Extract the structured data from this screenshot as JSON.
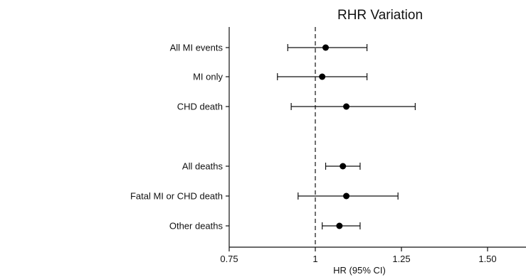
{
  "chart_data": {
    "type": "scatter",
    "subtype": "forest-plot",
    "title": "RHR Variation",
    "xlabel": "HR (95% CI)",
    "ylabel": "",
    "xlim": [
      0.75,
      1.6
    ],
    "reference_line": 1,
    "x_ticks": [
      {
        "value": 0.75,
        "label": "0.75"
      },
      {
        "value": 1.0,
        "label": "1"
      },
      {
        "value": 1.25,
        "label": "1.25"
      },
      {
        "value": 1.5,
        "label": "1.50"
      }
    ],
    "rows": [
      {
        "label": "All MI events",
        "hr": 1.03,
        "lower": 0.92,
        "upper": 1.15
      },
      {
        "label": "MI only",
        "hr": 1.02,
        "lower": 0.89,
        "upper": 1.15
      },
      {
        "label": "CHD death",
        "hr": 1.09,
        "lower": 0.93,
        "upper": 1.29
      },
      {
        "label": "All deaths",
        "hr": 1.08,
        "lower": 1.03,
        "upper": 1.13
      },
      {
        "label": "Fatal MI or CHD death",
        "hr": 1.09,
        "lower": 0.95,
        "upper": 1.24
      },
      {
        "label": "Other deaths",
        "hr": 1.07,
        "lower": 1.02,
        "upper": 1.13
      }
    ],
    "grid": false,
    "legend": "none"
  }
}
